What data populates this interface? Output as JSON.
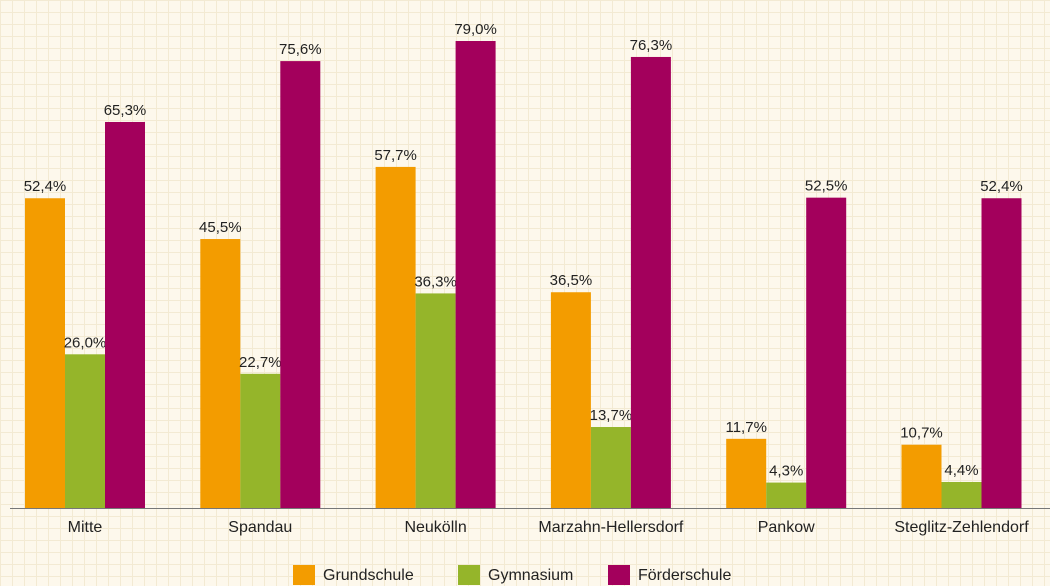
{
  "chart_data": {
    "type": "bar",
    "categories": [
      "Mitte",
      "Spandau",
      "Neukölln",
      "Marzahn-Hellersdorf",
      "Pankow",
      "Steglitz-Zehlendorf"
    ],
    "series": [
      {
        "name": "Grundschule",
        "color": "#f39c00",
        "values": [
          52.4,
          45.5,
          57.7,
          36.5,
          11.7,
          10.7
        ],
        "value_labels": [
          "52,4%",
          "45,5%",
          "57,7%",
          "36,5%",
          "11,7%",
          "10,7%"
        ]
      },
      {
        "name": "Gymnasium",
        "color": "#95b52a",
        "values": [
          26.0,
          22.7,
          36.3,
          13.7,
          4.3,
          4.4
        ],
        "value_labels": [
          "26,0%",
          "22,7%",
          "36,3%",
          "13,7%",
          "4,3%",
          "4,4%"
        ]
      },
      {
        "name": "Förderschule",
        "color": "#a3005c",
        "values": [
          65.3,
          75.6,
          79.0,
          76.3,
          52.5,
          52.4
        ],
        "value_labels": [
          "65,3%",
          "75,6%",
          "79,0%",
          "76,3%",
          "52,5%",
          "52,4%"
        ]
      }
    ],
    "legend": "bottom"
  }
}
